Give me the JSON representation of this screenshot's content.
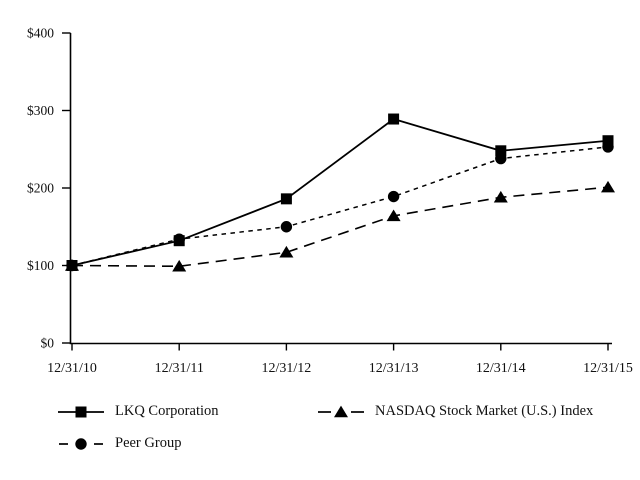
{
  "chart_data": {
    "type": "line",
    "title": "",
    "xlabel": "",
    "ylabel": "",
    "categories": [
      "12/31/10",
      "12/31/11",
      "12/31/12",
      "12/31/13",
      "12/31/14",
      "12/31/15"
    ],
    "y_ticks": [
      "$0",
      "$100",
      "$200",
      "$300",
      "$400"
    ],
    "y_tick_values": [
      0,
      100,
      200,
      300,
      400
    ],
    "ylim": [
      0,
      400
    ],
    "grid": false,
    "legend_position": "bottom",
    "series": [
      {
        "name": "LKQ Corporation",
        "marker": "square",
        "line": "solid",
        "values": [
          100,
          132,
          186,
          289,
          248,
          261
        ]
      },
      {
        "name": "NASDAQ Stock Market (U.S.) Index",
        "marker": "triangle",
        "line": "long-dash",
        "values": [
          100,
          99,
          117,
          164,
          188,
          201
        ]
      },
      {
        "name": "Peer Group",
        "marker": "circle",
        "line": "short-dash",
        "values": [
          100,
          134,
          150,
          189,
          238,
          253
        ]
      }
    ],
    "colors": {
      "line": "#000000",
      "background": "#ffffff",
      "text": "#111111"
    }
  }
}
